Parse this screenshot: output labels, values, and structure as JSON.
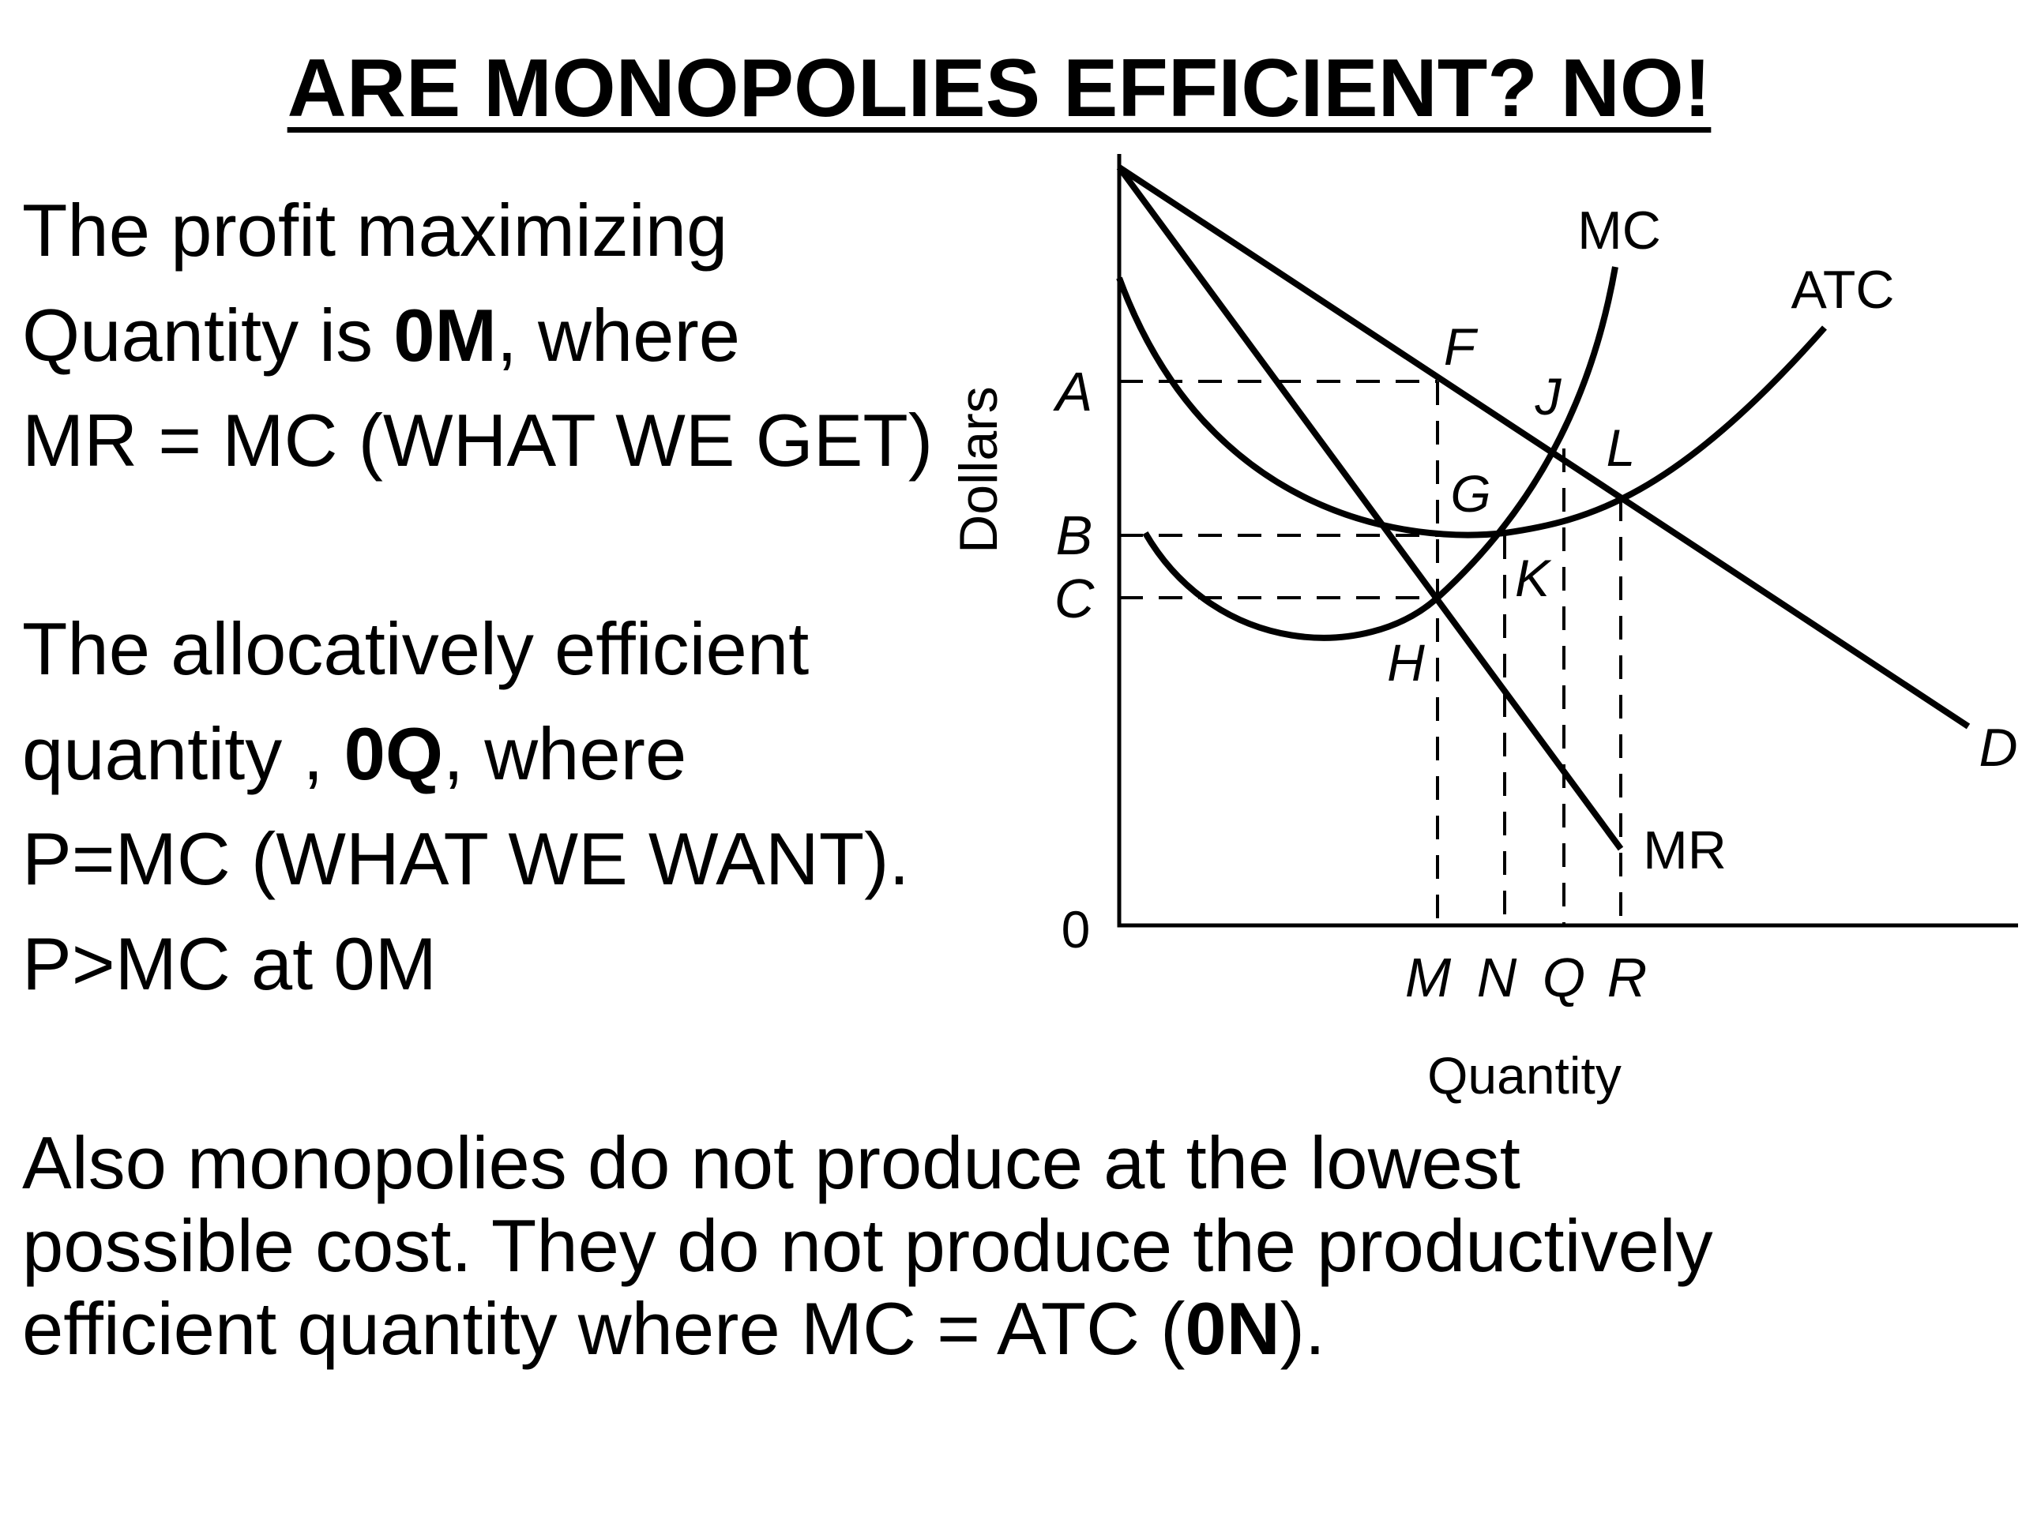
{
  "title": "ARE MONOPOLIES EFFICIENT?  NO!",
  "text": {
    "p1_l1": "The profit maximizing",
    "p1_l2a": "Quantity is ",
    "p1_l2b": "0M",
    "p1_l2c": ", where",
    "p1_l3": "MR = MC (WHAT WE GET)",
    "p2_l1": "The allocatively efficient",
    "p2_l2a": "quantity , ",
    "p2_l2b": "0Q",
    "p2_l2c": ", where",
    "p2_l3": "P=MC (WHAT WE WANT).",
    "p2_l4": "P>MC at 0M",
    "p3_l1": "Also monopolies do not produce at the lowest",
    "p3_l2": "possible cost. They do not produce the productively",
    "p3_l3a": "efficient quantity where MC = ATC (",
    "p3_l3b": "0N",
    "p3_l3c": ")."
  },
  "diagram": {
    "y_axis_label": "Dollars",
    "x_axis_label": "Quantity",
    "origin": "0",
    "price_levels": {
      "a": "A",
      "b": "B",
      "c": "C"
    },
    "quantities": {
      "m": "M",
      "n": "N",
      "q": "Q",
      "r": "R"
    },
    "curves": {
      "mc": "MC",
      "atc": "ATC",
      "d": "D",
      "mr": "MR"
    },
    "points": {
      "f": "F",
      "g": "G",
      "h": "H",
      "j": "J",
      "k": "K",
      "l": "L"
    }
  }
}
